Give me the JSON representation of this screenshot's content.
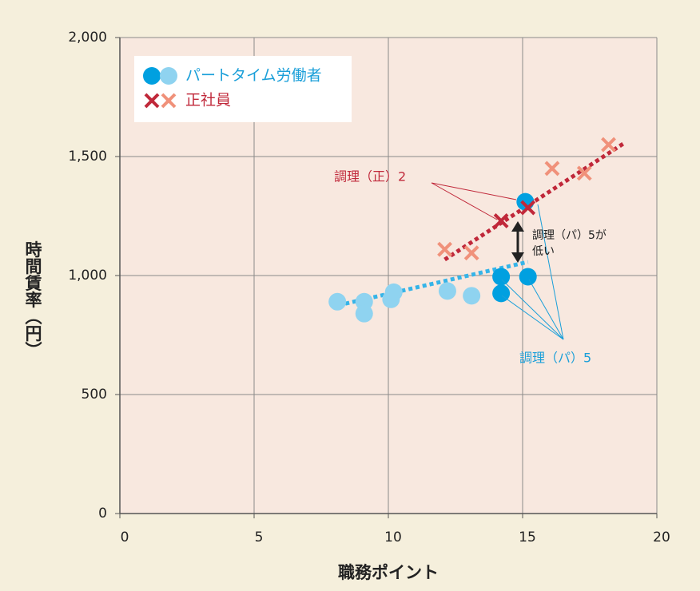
{
  "chart_data": {
    "type": "scatter",
    "xlabel": "職務ポイント",
    "ylabel": "時間賃率（円）",
    "xlim": [
      0,
      20
    ],
    "ylim": [
      0,
      2000
    ],
    "xticks": [
      0,
      5,
      10,
      15,
      20
    ],
    "yticks": [
      0,
      500,
      {
        "value": 1000,
        "label": "1,000"
      },
      {
        "value": 1500,
        "label": "1,500"
      },
      {
        "value": 2000,
        "label": "2,000"
      }
    ],
    "grid": true,
    "legend": "upper left",
    "series": [
      {
        "name": "パートタイム労働者",
        "marker": "circle",
        "text_color": "#1a9fd9",
        "x": [
          8.1,
          9.1,
          9.1,
          10.1,
          10.2,
          12.2,
          13.1,
          14.2,
          14.2,
          15.2,
          15.1
        ],
        "values": [
          890,
          890,
          840,
          900,
          930,
          935,
          915,
          995,
          925,
          995,
          1310
        ],
        "colors": [
          "#8fd3f0",
          "#8fd3f0",
          "#8fd3f0",
          "#8fd3f0",
          "#8fd3f0",
          "#8fd3f0",
          "#8fd3f0",
          "#00a0e0",
          "#00a0e0",
          "#00a0e0",
          "#00a0e0"
        ],
        "trend": {
          "x": [
            8.4,
            15.2
          ],
          "values": [
            882,
            1057
          ],
          "color": "#35b4e8"
        }
      },
      {
        "name": "正社員",
        "marker": "cross",
        "text_color": "#c0283a",
        "x": [
          12.1,
          13.1,
          16.1,
          17.3,
          18.2,
          14.2,
          15.2
        ],
        "values": [
          1110,
          1095,
          1450,
          1430,
          1550,
          1230,
          1285
        ],
        "colors": [
          "#f0917a",
          "#f0917a",
          "#f0917a",
          "#f0917a",
          "#f0917a",
          "#c0283a",
          "#c0283a"
        ],
        "trend": {
          "x": [
            12.1,
            18.75
          ],
          "values": [
            1067,
            1554
          ],
          "color": "#c0283a"
        }
      }
    ],
    "annotations": [
      "調理（正）2",
      "調理（パ）5",
      "調理（パ）5が",
      "低い"
    ]
  }
}
